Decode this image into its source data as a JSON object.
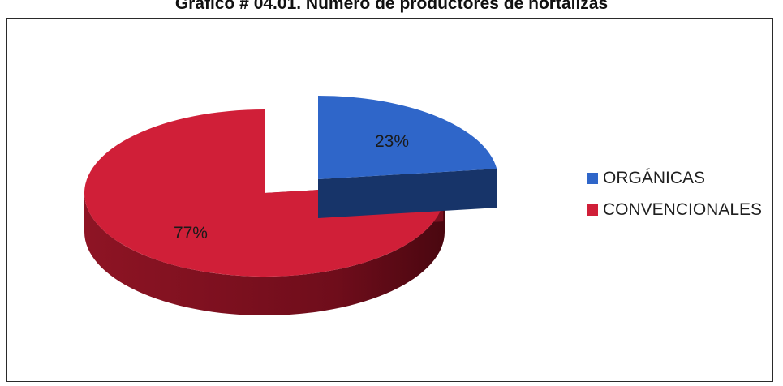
{
  "chart_data": {
    "type": "pie",
    "title": "Gráfico # 04.01. Número de productores de hortalizas",
    "categories": [
      "ORGÁNICAS",
      "CONVENCIONALES"
    ],
    "values": [
      23,
      77
    ],
    "labels": [
      "23%",
      "77%"
    ],
    "colors": [
      "#2f66c9",
      "#d01f38"
    ],
    "legend_position": "right",
    "style": "3d-exploded"
  }
}
